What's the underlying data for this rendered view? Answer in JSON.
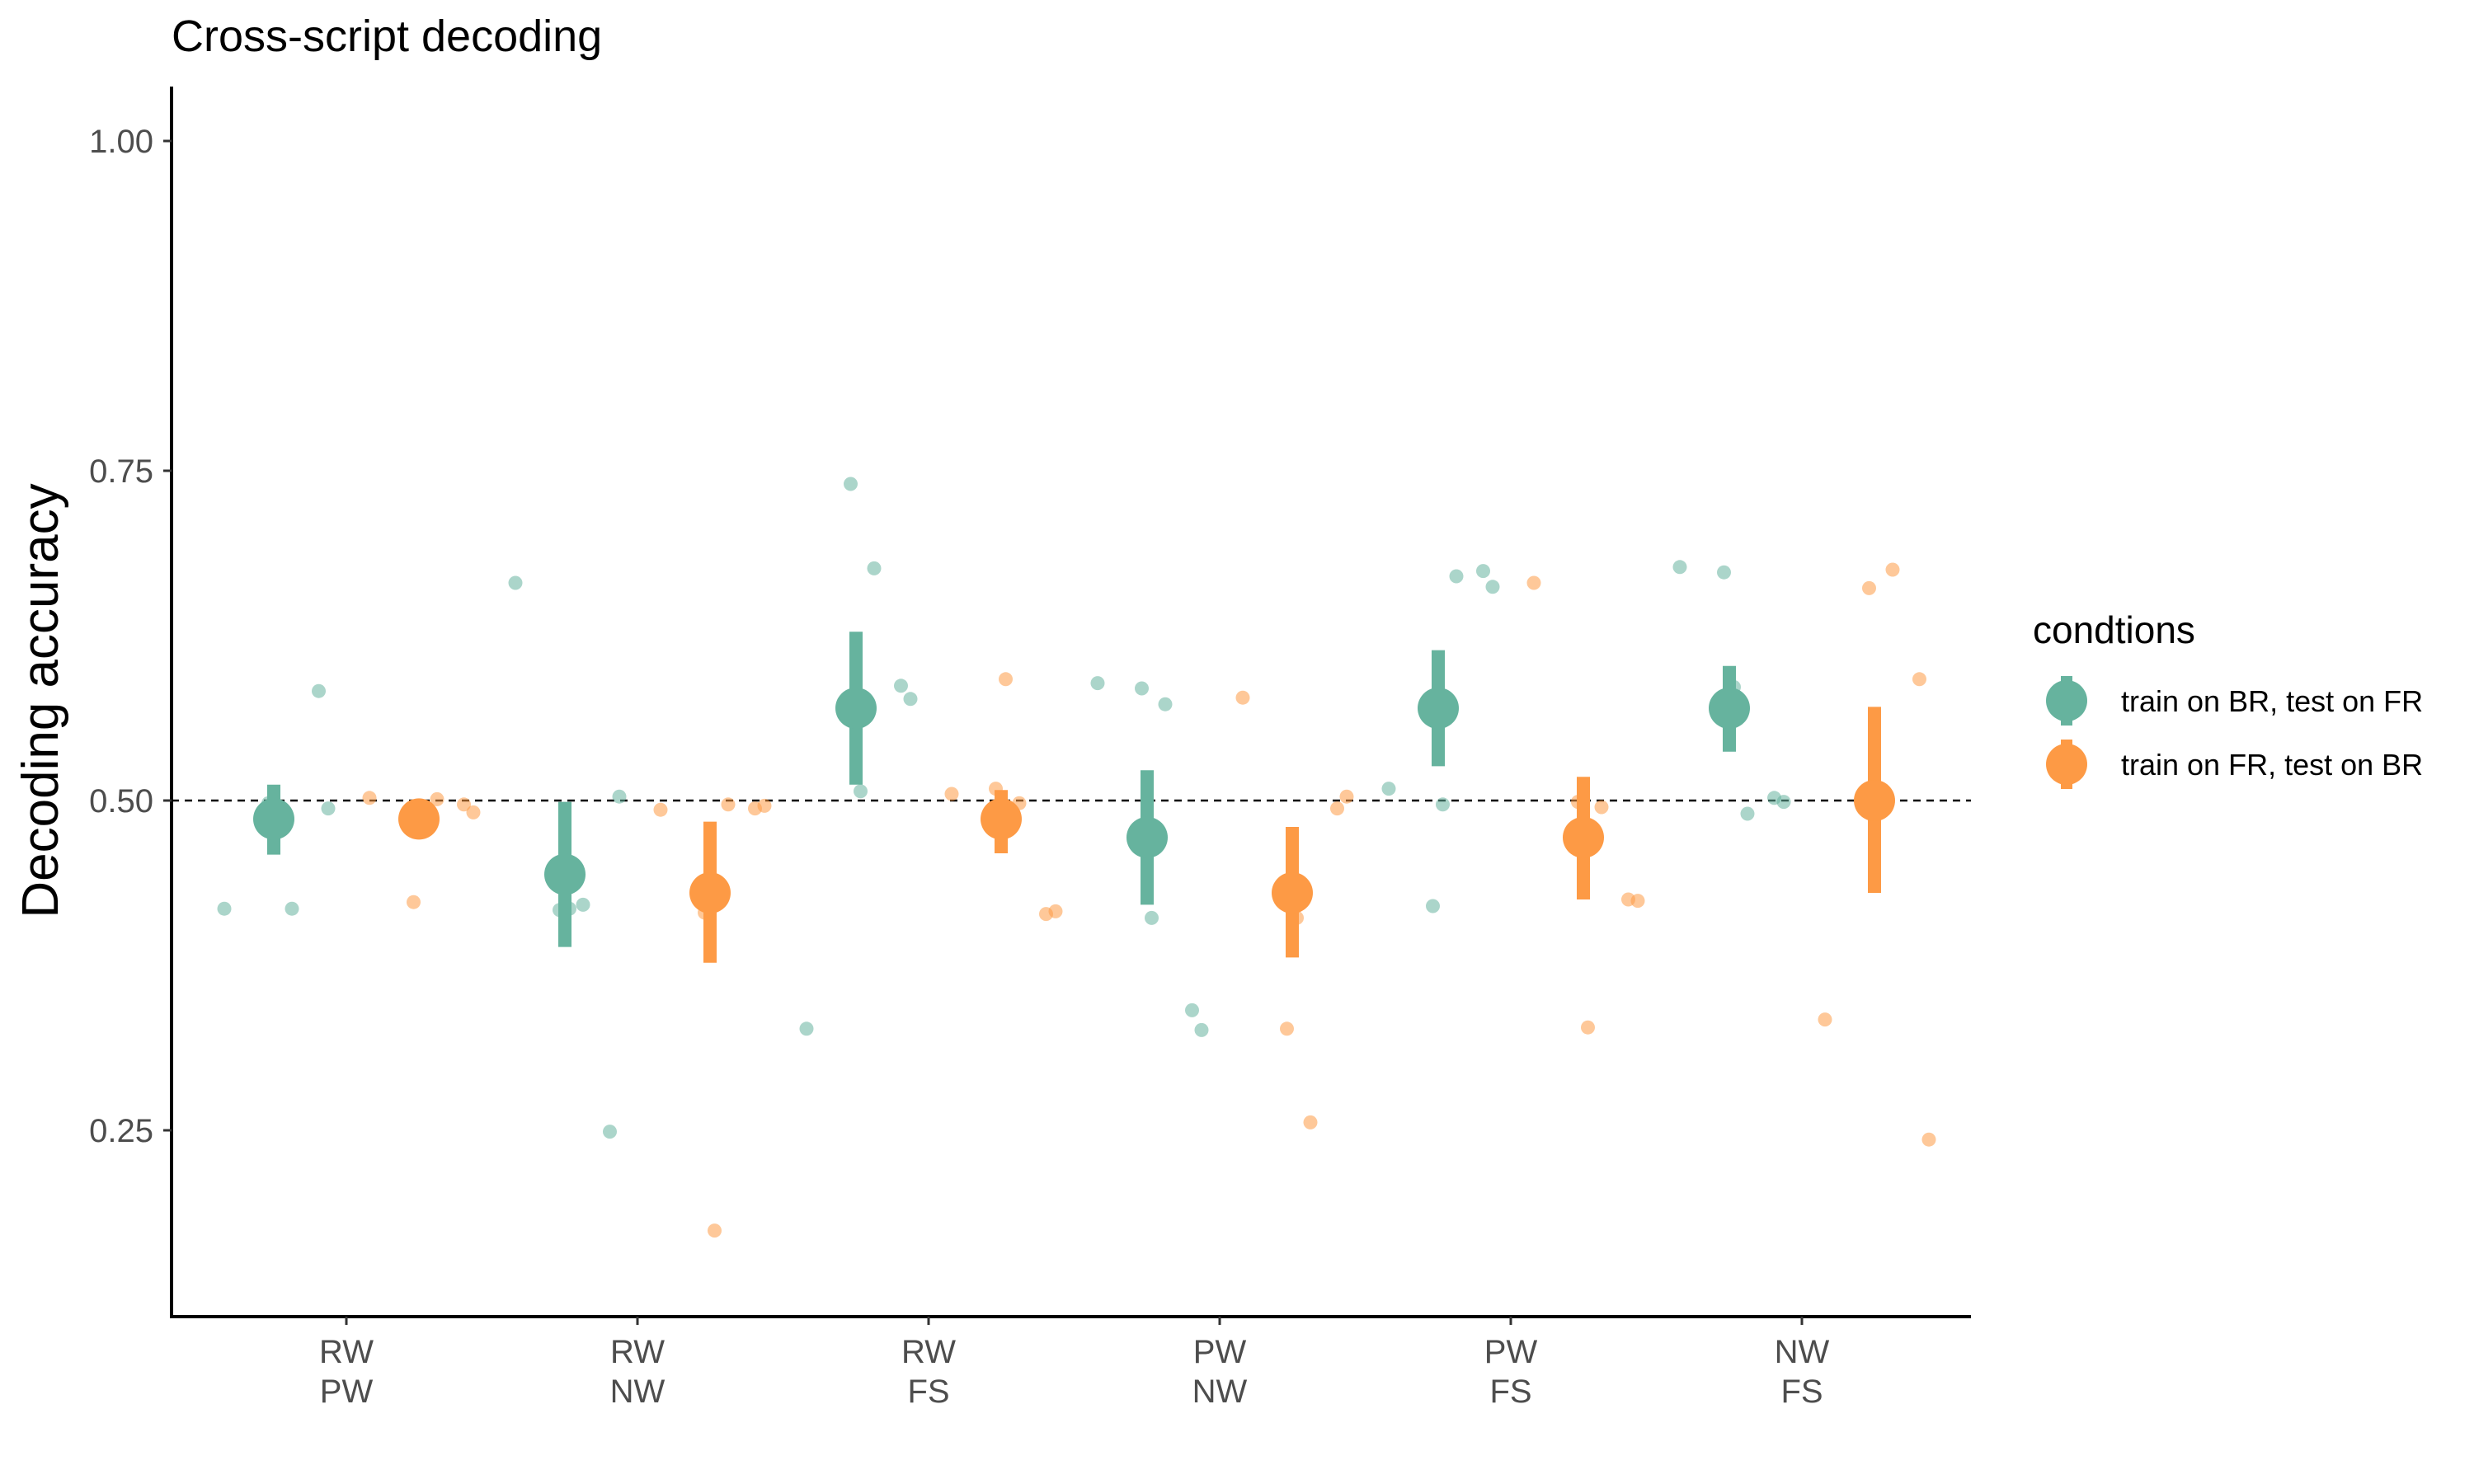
{
  "chart_data": {
    "type": "scatter",
    "title": "Cross-script decoding",
    "ylabel": "Decoding accuracy",
    "xlabel": "",
    "ylim": [
      0.11,
      1.03
    ],
    "yticks": [
      0.25,
      0.5,
      0.75,
      1.0
    ],
    "ytick_labels": [
      "0.25",
      "0.50",
      "0.75",
      "1.00"
    ],
    "reference_line": 0.5,
    "categories": [
      {
        "line1": "RW",
        "line2": "PW"
      },
      {
        "line1": "RW",
        "line2": "NW"
      },
      {
        "line1": "RW",
        "line2": "FS"
      },
      {
        "line1": "PW",
        "line2": "NW"
      },
      {
        "line1": "PW",
        "line2": "FS"
      },
      {
        "line1": "NW",
        "line2": "FS"
      }
    ],
    "legend": {
      "title": "condtions",
      "position": "right"
    },
    "grid": false,
    "series": [
      {
        "name": "train on BR, test on FR",
        "color": "#66b39e",
        "summary": [
          {
            "mean": 0.486,
            "low": 0.459,
            "high": 0.512
          },
          {
            "mean": 0.444,
            "low": 0.389,
            "high": 0.499
          },
          {
            "mean": 0.57,
            "low": 0.512,
            "high": 0.628
          },
          {
            "mean": 0.472,
            "low": 0.421,
            "high": 0.523
          },
          {
            "mean": 0.57,
            "low": 0.526,
            "high": 0.614
          },
          {
            "mean": 0.57,
            "low": 0.537,
            "high": 0.602
          }
        ],
        "points": [
          [
            0.418,
            0.498,
            0.418,
            0.583,
            0.494,
            0.493
          ],
          [
            0.665,
            0.417,
            0.421,
            0.249,
            0.503,
            0.418
          ],
          [
            0.327,
            0.74,
            0.676,
            0.587,
            0.577,
            0.507
          ],
          [
            0.589,
            0.585,
            0.573,
            0.341,
            0.326,
            0.411
          ],
          [
            0.509,
            0.42,
            0.67,
            0.674,
            0.662,
            0.497
          ],
          [
            0.677,
            0.673,
            0.49,
            0.502,
            0.499,
            0.586
          ]
        ]
      },
      {
        "name": "train on FR, test on BR",
        "color": "#fd9a45",
        "summary": [
          {
            "mean": 0.486,
            "low": 0.486,
            "high": 0.486
          },
          {
            "mean": 0.43,
            "low": 0.377,
            "high": 0.484
          },
          {
            "mean": 0.486,
            "low": 0.46,
            "high": 0.508
          },
          {
            "mean": 0.43,
            "low": 0.381,
            "high": 0.48
          },
          {
            "mean": 0.472,
            "low": 0.425,
            "high": 0.518
          },
          {
            "mean": 0.5,
            "low": 0.43,
            "high": 0.571
          }
        ],
        "points": [
          [
            0.502,
            0.423,
            0.501,
            0.497,
            0.491,
            0.49
          ],
          [
            0.493,
            0.415,
            0.497,
            0.494,
            0.496,
            0.174
          ],
          [
            0.505,
            0.509,
            0.498,
            0.414,
            0.416,
            0.592
          ],
          [
            0.578,
            0.327,
            0.256,
            0.494,
            0.503,
            0.411
          ],
          [
            0.665,
            0.499,
            0.495,
            0.425,
            0.424,
            0.328
          ],
          [
            0.334,
            0.661,
            0.675,
            0.592,
            0.243,
            0.498
          ]
        ]
      }
    ]
  }
}
